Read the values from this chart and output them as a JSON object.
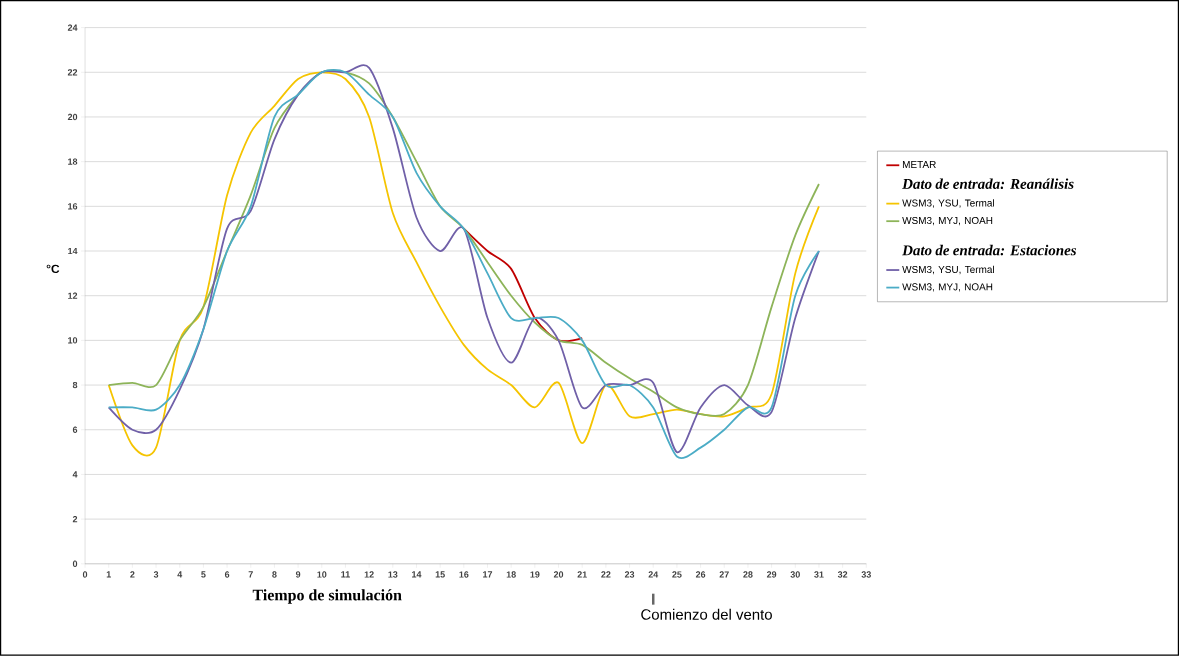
{
  "chart_data": {
    "type": "line",
    "xlabel": "Tiempo de simulación",
    "ylabel": "°C",
    "x": [
      1,
      2,
      3,
      4,
      5,
      6,
      7,
      8,
      9,
      10,
      11,
      12,
      13,
      14,
      15,
      16,
      17,
      18,
      19,
      20,
      21,
      22,
      23,
      24,
      25,
      26,
      27,
      28,
      29,
      30,
      31
    ],
    "series": [
      {
        "name": "METAR",
        "color": "#c00000",
        "values": [
          null,
          null,
          null,
          null,
          null,
          null,
          null,
          null,
          null,
          null,
          null,
          null,
          null,
          null,
          null,
          15,
          14,
          13.2,
          11,
          10,
          10.1,
          null,
          null,
          null,
          null,
          null,
          null,
          null,
          null,
          null,
          null
        ]
      },
      {
        "name": "WSM3, YSU, Termal",
        "color": "#f5c400",
        "values": [
          8,
          5.3,
          5.2,
          10,
          11.5,
          16.5,
          19.3,
          20.5,
          21.7,
          22,
          21.7,
          20,
          15.7,
          13.5,
          11.5,
          9.8,
          8.7,
          8,
          7,
          8.1,
          5.4,
          8,
          6.6,
          6.7,
          6.9,
          6.7,
          6.6,
          7,
          7.6,
          13,
          16
        ]
      },
      {
        "name": "WSM3, MYJ, NOAH",
        "color": "#8db459",
        "values": [
          8,
          8.1,
          8,
          10,
          11.5,
          14,
          16.5,
          19.5,
          21,
          22,
          22,
          21.5,
          20,
          18,
          16,
          15,
          13.5,
          12,
          10.8,
          10,
          9.8,
          9,
          8.3,
          7.7,
          7,
          6.7,
          6.7,
          8,
          11.5,
          14.7,
          17
        ]
      },
      {
        "name": "WSM3, YSU, Termal",
        "color": "#7060a8",
        "values": [
          7,
          6,
          6,
          7.8,
          10.5,
          15,
          15.8,
          19,
          21,
          22,
          22,
          22.2,
          19.5,
          15.5,
          14,
          15,
          11,
          9,
          11,
          10,
          7,
          8,
          8,
          8.1,
          5,
          7,
          8,
          7.1,
          6.8,
          11,
          14
        ]
      },
      {
        "name": "WSM3, MYJ, NOAH",
        "color": "#4bacc6",
        "values": [
          7,
          7,
          6.9,
          8,
          10.5,
          14,
          16,
          20,
          21,
          22,
          22,
          21,
          20,
          17.5,
          16,
          15,
          13,
          11,
          11,
          11,
          10,
          8,
          8,
          7,
          4.8,
          5.2,
          6,
          7,
          7,
          12,
          14
        ]
      }
    ],
    "xlim": [
      0,
      33
    ],
    "ylim": [
      0,
      24
    ],
    "xticks": [
      0,
      1,
      2,
      3,
      4,
      5,
      6,
      7,
      8,
      9,
      10,
      11,
      12,
      13,
      14,
      15,
      16,
      17,
      18,
      19,
      20,
      21,
      22,
      23,
      24,
      25,
      26,
      27,
      28,
      29,
      30,
      31,
      32,
      33
    ],
    "yticks": [
      0,
      2,
      4,
      6,
      8,
      10,
      12,
      14,
      16,
      18,
      20,
      22,
      24
    ],
    "grid": "y",
    "legend": "right",
    "marker": "none",
    "line_style": "solid",
    "annotations": [
      "Dato de entrada: Reanálisis",
      "Dato de entrada: Estaciones",
      "Comienzo del vento"
    ]
  }
}
